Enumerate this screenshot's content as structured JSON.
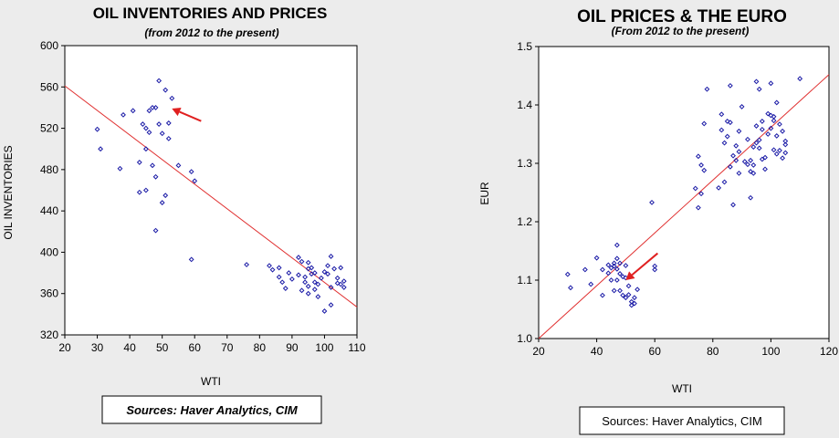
{
  "chart_data": [
    {
      "type": "scatter",
      "title": "OIL INVENTORIES AND PRICES",
      "subtitle": "(from 2012 to the present)",
      "xlabel": "WTI",
      "ylabel": "OIL INVENTORIES",
      "xlim": [
        20,
        110
      ],
      "ylim": [
        320,
        600
      ],
      "xticks": [
        "20",
        "30",
        "40",
        "50",
        "60",
        "70",
        "80",
        "90",
        "100",
        "110"
      ],
      "yticks": [
        "320",
        "360",
        "400",
        "440",
        "480",
        "520",
        "560",
        "600"
      ],
      "grid": false,
      "colors": {
        "points": "#1a1aa6",
        "trend": "#e03030",
        "arrow": "#e02020",
        "plot_bg": "#ffffff"
      },
      "source": "Sources:  Haver Analytics, CIM",
      "trendline": {
        "x": [
          20,
          110
        ],
        "y": [
          561,
          347
        ]
      },
      "arrow": {
        "from": [
          62,
          527
        ],
        "to": [
          53,
          539
        ]
      },
      "points": [
        [
          30,
          519
        ],
        [
          31,
          500
        ],
        [
          37,
          481
        ],
        [
          38,
          533
        ],
        [
          41,
          537
        ],
        [
          43,
          487
        ],
        [
          43,
          458
        ],
        [
          44,
          524
        ],
        [
          45,
          520
        ],
        [
          45,
          500
        ],
        [
          45,
          460
        ],
        [
          46,
          537
        ],
        [
          46,
          516
        ],
        [
          47,
          540
        ],
        [
          47,
          484
        ],
        [
          48,
          540
        ],
        [
          48,
          473
        ],
        [
          48,
          421
        ],
        [
          49,
          566
        ],
        [
          49,
          524
        ],
        [
          50,
          515
        ],
        [
          50,
          448
        ],
        [
          51,
          557
        ],
        [
          51,
          455
        ],
        [
          52,
          525
        ],
        [
          52,
          510
        ],
        [
          53,
          549
        ],
        [
          55,
          484
        ],
        [
          59,
          393
        ],
        [
          59,
          478
        ],
        [
          60,
          469
        ],
        [
          76,
          388
        ],
        [
          83,
          387
        ],
        [
          84,
          383
        ],
        [
          86,
          376
        ],
        [
          86,
          385
        ],
        [
          87,
          371
        ],
        [
          88,
          365
        ],
        [
          89,
          380
        ],
        [
          90,
          374
        ],
        [
          92,
          395
        ],
        [
          92,
          378
        ],
        [
          93,
          391
        ],
        [
          93,
          363
        ],
        [
          94,
          376
        ],
        [
          94,
          371
        ],
        [
          95,
          390
        ],
        [
          95,
          384
        ],
        [
          95,
          367
        ],
        [
          95,
          360
        ],
        [
          96,
          385
        ],
        [
          96,
          379
        ],
        [
          97,
          380
        ],
        [
          97,
          371
        ],
        [
          97,
          364
        ],
        [
          98,
          357
        ],
        [
          98,
          369
        ],
        [
          99,
          375
        ],
        [
          100,
          343
        ],
        [
          100,
          381
        ],
        [
          101,
          387
        ],
        [
          101,
          379
        ],
        [
          102,
          396
        ],
        [
          102,
          349
        ],
        [
          102,
          366
        ],
        [
          103,
          384
        ],
        [
          104,
          375
        ],
        [
          104,
          370
        ],
        [
          105,
          385
        ],
        [
          105,
          369
        ],
        [
          106,
          366
        ],
        [
          106,
          372
        ]
      ]
    },
    {
      "type": "scatter",
      "title": "OIL PRICES & THE EURO",
      "subtitle": "(From 2012 to the present)",
      "xlabel": "WTI",
      "ylabel": "EUR",
      "xlim": [
        20,
        120
      ],
      "ylim": [
        1.0,
        1.5
      ],
      "xticks": [
        "20",
        "40",
        "60",
        "80",
        "100",
        "120"
      ],
      "yticks": [
        "1.0",
        "1.1",
        "1.2",
        "1.3",
        "1.4",
        "1.5"
      ],
      "grid": false,
      "colors": {
        "points": "#1a1aa6",
        "trend": "#e03030",
        "arrow": "#e02020",
        "plot_bg": "#ffffff"
      },
      "source": "Sources:  Haver Analytics, CIM",
      "trendline": {
        "x": [
          20,
          120
        ],
        "y": [
          1.0,
          1.452
        ]
      },
      "arrow": {
        "from": [
          61,
          1.146
        ],
        "to": [
          50,
          1.1
        ]
      },
      "points": [
        [
          30,
          1.11
        ],
        [
          31,
          1.087
        ],
        [
          36,
          1.118
        ],
        [
          38,
          1.093
        ],
        [
          40,
          1.138
        ],
        [
          42,
          1.118
        ],
        [
          42,
          1.074
        ],
        [
          44,
          1.112
        ],
        [
          44,
          1.126
        ],
        [
          45,
          1.121
        ],
        [
          45,
          1.1
        ],
        [
          46,
          1.129
        ],
        [
          46,
          1.124
        ],
        [
          46,
          1.082
        ],
        [
          47,
          1.16
        ],
        [
          47,
          1.137
        ],
        [
          47,
          1.119
        ],
        [
          47,
          1.1
        ],
        [
          48,
          1.082
        ],
        [
          48,
          1.111
        ],
        [
          48,
          1.129
        ],
        [
          49,
          1.106
        ],
        [
          49,
          1.074
        ],
        [
          50,
          1.07
        ],
        [
          50,
          1.104
        ],
        [
          50,
          1.125
        ],
        [
          51,
          1.09
        ],
        [
          51,
          1.075
        ],
        [
          52,
          1.063
        ],
        [
          52,
          1.057
        ],
        [
          53,
          1.07
        ],
        [
          53,
          1.06
        ],
        [
          54,
          1.084
        ],
        [
          59,
          1.233
        ],
        [
          60,
          1.118
        ],
        [
          60,
          1.124
        ],
        [
          74,
          1.257
        ],
        [
          75,
          1.312
        ],
        [
          75,
          1.224
        ],
        [
          76,
          1.248
        ],
        [
          76,
          1.297
        ],
        [
          77,
          1.368
        ],
        [
          77,
          1.288
        ],
        [
          78,
          1.427
        ],
        [
          82,
          1.258
        ],
        [
          83,
          1.384
        ],
        [
          83,
          1.357
        ],
        [
          84,
          1.268
        ],
        [
          84,
          1.335
        ],
        [
          85,
          1.372
        ],
        [
          85,
          1.346
        ],
        [
          86,
          1.433
        ],
        [
          86,
          1.37
        ],
        [
          86,
          1.294
        ],
        [
          87,
          1.229
        ],
        [
          87,
          1.313
        ],
        [
          88,
          1.33
        ],
        [
          88,
          1.305
        ],
        [
          89,
          1.355
        ],
        [
          89,
          1.32
        ],
        [
          89,
          1.283
        ],
        [
          90,
          1.397
        ],
        [
          91,
          1.303
        ],
        [
          92,
          1.298
        ],
        [
          92,
          1.341
        ],
        [
          93,
          1.241
        ],
        [
          93,
          1.286
        ],
        [
          93,
          1.305
        ],
        [
          94,
          1.328
        ],
        [
          94,
          1.297
        ],
        [
          94,
          1.283
        ],
        [
          95,
          1.335
        ],
        [
          95,
          1.364
        ],
        [
          95,
          1.44
        ],
        [
          96,
          1.427
        ],
        [
          96,
          1.34
        ],
        [
          96,
          1.326
        ],
        [
          97,
          1.372
        ],
        [
          97,
          1.358
        ],
        [
          97,
          1.307
        ],
        [
          98,
          1.31
        ],
        [
          98,
          1.29
        ],
        [
          99,
          1.385
        ],
        [
          99,
          1.35
        ],
        [
          100,
          1.382
        ],
        [
          100,
          1.36
        ],
        [
          100,
          1.437
        ],
        [
          101,
          1.373
        ],
        [
          101,
          1.38
        ],
        [
          101,
          1.323
        ],
        [
          102,
          1.404
        ],
        [
          102,
          1.347
        ],
        [
          102,
          1.316
        ],
        [
          103,
          1.367
        ],
        [
          103,
          1.322
        ],
        [
          104,
          1.309
        ],
        [
          104,
          1.355
        ],
        [
          105,
          1.318
        ],
        [
          105,
          1.338
        ],
        [
          105,
          1.332
        ],
        [
          110,
          1.445
        ]
      ]
    }
  ]
}
